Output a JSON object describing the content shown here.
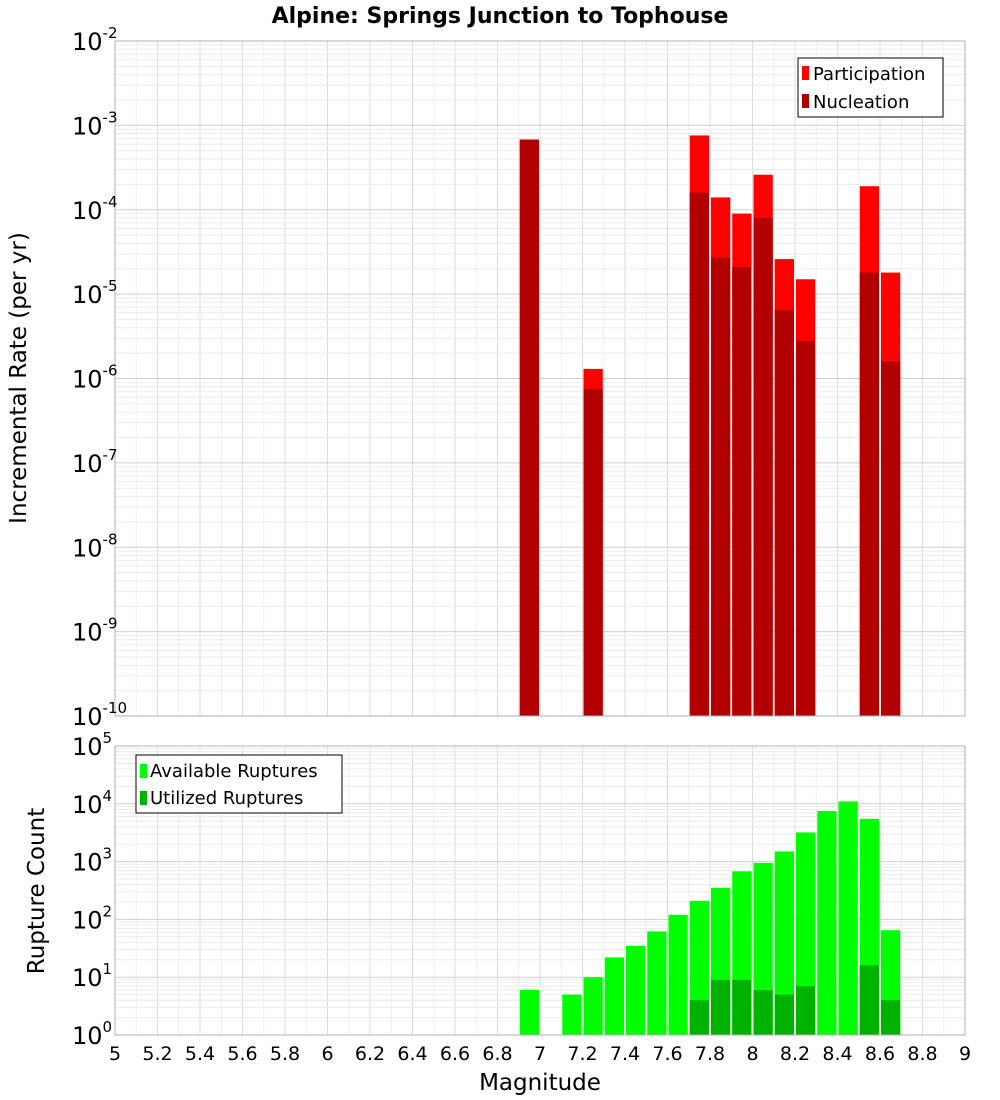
{
  "chart_data": [
    {
      "type": "bar",
      "title": "Alpine: Springs Junction to Tophouse",
      "ylabel": "Incremental Rate (per yr)",
      "yscale": "log",
      "ylim_exp": [
        -10,
        -2
      ],
      "xlim": [
        5,
        9
      ],
      "bar_width": 0.1,
      "grid": true,
      "legend_position": "top-right",
      "colors": {
        "Participation": "#ff0000",
        "Nucleation": "#b20000"
      },
      "series": [
        {
          "name": "Participation",
          "x": [
            6.95,
            7.25,
            7.75,
            7.85,
            7.95,
            8.05,
            8.15,
            8.25,
            8.55,
            8.65
          ],
          "values": [
            0.00068,
            1.3e-06,
            0.00076,
            0.00014,
            9e-05,
            0.00026,
            2.6e-05,
            1.5e-05,
            0.00019,
            1.8e-05
          ]
        },
        {
          "name": "Nucleation",
          "x": [
            6.95,
            7.25,
            7.75,
            7.85,
            7.95,
            8.05,
            8.15,
            8.25,
            8.55,
            8.65
          ],
          "values": [
            0.00068,
            7.5e-07,
            0.00016,
            2.7e-05,
            2.1e-05,
            8e-05,
            6.5e-06,
            2.8e-06,
            1.8e-05,
            1.6e-06
          ]
        }
      ]
    },
    {
      "type": "bar",
      "ylabel": "Rupture Count",
      "xlabel": "Magnitude",
      "yscale": "log",
      "ylim_exp": [
        0,
        5
      ],
      "xlim": [
        5,
        9
      ],
      "bar_width": 0.1,
      "grid": true,
      "legend_position": "top-left",
      "xticks": [
        "5",
        "5.2",
        "5.4",
        "5.6",
        "5.8",
        "6",
        "6.2",
        "6.4",
        "6.6",
        "6.8",
        "7",
        "7.2",
        "7.4",
        "7.6",
        "7.8",
        "8",
        "8.2",
        "8.4",
        "8.6",
        "8.8",
        "9"
      ],
      "colors": {
        "Available Ruptures": "#00ff00",
        "Utilized Ruptures": "#00b200"
      },
      "series": [
        {
          "name": "Available Ruptures",
          "x": [
            6.95,
            7.15,
            7.25,
            7.35,
            7.45,
            7.55,
            7.65,
            7.75,
            7.85,
            7.95,
            8.05,
            8.15,
            8.25,
            8.35,
            8.45,
            8.55,
            8.65
          ],
          "values": [
            6,
            5,
            10,
            22,
            35,
            62,
            120,
            210,
            350,
            680,
            950,
            1500,
            3200,
            7500,
            11000,
            5500,
            65
          ]
        },
        {
          "name": "Utilized Ruptures",
          "x": [
            6.95,
            7.25,
            7.75,
            7.85,
            7.95,
            8.05,
            8.15,
            8.25,
            8.55,
            8.65
          ],
          "values": [
            1,
            1,
            4,
            9,
            9,
            6,
            5,
            7,
            16,
            4
          ]
        }
      ]
    }
  ]
}
